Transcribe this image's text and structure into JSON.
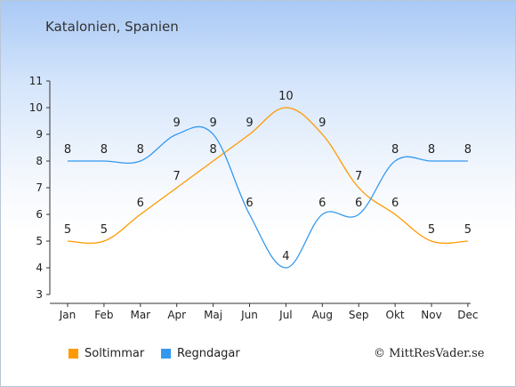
{
  "place": "Katalonien, Spanien",
  "copyright": "© MittResVader.se",
  "colors": {
    "sun": "#ff9900",
    "rain": "#3399ee",
    "axis": "#333333",
    "text": "#222222"
  },
  "chart_data": {
    "type": "line",
    "categories": [
      "Jan",
      "Feb",
      "Mar",
      "Apr",
      "Maj",
      "Jun",
      "Jul",
      "Aug",
      "Sep",
      "Okt",
      "Nov",
      "Dec"
    ],
    "yticks": [
      3,
      4,
      5,
      6,
      7,
      8,
      9,
      10,
      11
    ],
    "ylim": [
      3,
      11
    ],
    "grid": false,
    "legend": "bottom-left",
    "series": [
      {
        "name": "Soltimmar",
        "color": "#ff9900",
        "values": [
          5,
          5,
          6,
          7,
          8,
          9,
          10,
          9,
          7,
          6,
          5,
          5
        ]
      },
      {
        "name": "Regndagar",
        "color": "#3399ee",
        "values": [
          8,
          8,
          8,
          9,
          9,
          6,
          4,
          6,
          6,
          8,
          8,
          8
        ]
      }
    ]
  }
}
